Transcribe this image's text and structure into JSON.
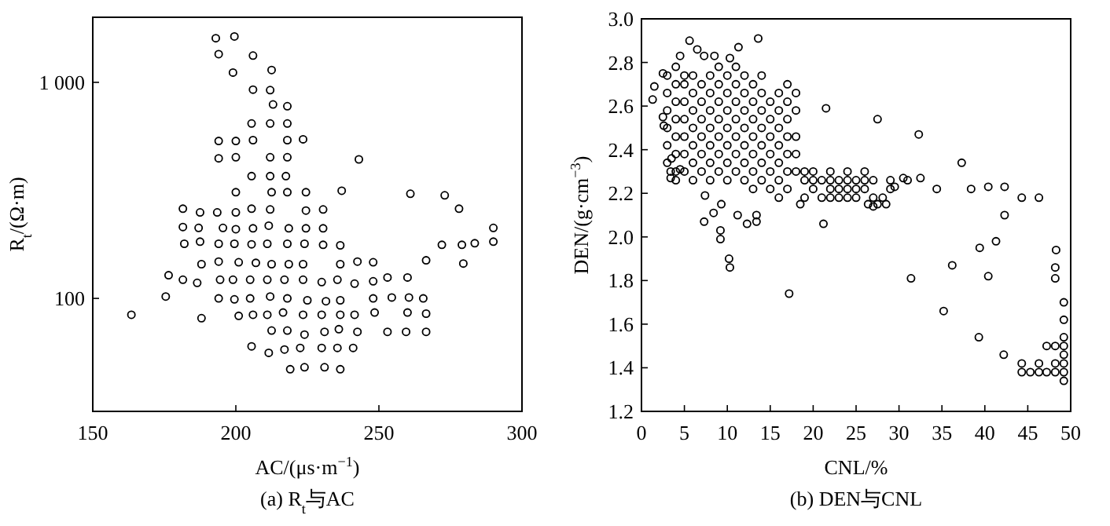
{
  "chart_data": [
    {
      "type": "scatter",
      "title": "(a) R$_{t}$与AC",
      "xlabel": "AC/(μs·m$^{−1}$)",
      "ylabel": "R$_{t}$/(Ω·m)",
      "log": "y",
      "xlim": [
        150,
        300
      ],
      "xticks": [
        150,
        200,
        250,
        300
      ],
      "ylim": [
        30,
        2000
      ],
      "yticks": [
        {
          "value": 100,
          "label": "100"
        },
        {
          "value": 1000,
          "label": "1 000"
        }
      ],
      "marker": "circle",
      "grid": false,
      "series": [
        {
          "color": "#000000",
          "x": [
            193,
            199.5,
            194,
            206,
            199,
            212.5,
            206,
            212,
            213,
            218,
            205.5,
            212,
            218,
            194,
            200,
            206,
            218,
            223.5,
            194,
            200,
            212,
            218,
            243,
            205.5,
            212,
            217.5,
            200,
            212.5,
            218,
            224.5,
            237,
            261,
            273,
            278,
            181.5,
            187.5,
            193.5,
            200,
            205.5,
            212,
            224.5,
            230.5,
            181.5,
            187,
            195.5,
            200,
            206,
            211.5,
            218.5,
            224.5,
            230.5,
            290,
            182,
            187.5,
            194,
            199.5,
            205.5,
            211,
            218,
            224,
            230.5,
            236.5,
            272,
            279,
            283.5,
            290,
            188,
            194,
            201,
            207,
            212.5,
            218.5,
            223.5,
            236.5,
            242.5,
            248,
            266.5,
            279.5,
            176.5,
            181.5,
            186.5,
            194.5,
            199,
            205,
            211,
            217,
            223.5,
            230,
            235.5,
            241.5,
            248,
            253,
            260,
            175.5,
            194,
            199.5,
            205,
            212,
            218,
            225,
            231.5,
            236.5,
            248,
            254.5,
            260.5,
            265.5,
            163.5,
            188,
            201,
            206,
            211,
            216.5,
            223.5,
            230,
            236.5,
            241.5,
            248.5,
            260,
            266.5,
            212.5,
            218,
            224,
            231,
            236,
            242.5,
            253,
            259.5,
            266.5,
            205.5,
            211.5,
            217,
            222.5,
            230,
            235.5,
            241,
            219,
            224,
            231,
            236.5
          ],
          "values": [
            1600,
            1630,
            1350,
            1330,
            1110,
            1140,
            925,
            920,
            790,
            775,
            645,
            645,
            645,
            535,
            535,
            540,
            540,
            545,
            445,
            450,
            450,
            450,
            440,
            368,
            368,
            368,
            310,
            310,
            310,
            310,
            315,
            305,
            300,
            260,
            260,
            250,
            250,
            250,
            260,
            258,
            255,
            258,
            214,
            212,
            212,
            209,
            211,
            217,
            211,
            211,
            211,
            212,
            179,
            183,
            179,
            179,
            178,
            179,
            179,
            179,
            177,
            176,
            177,
            177,
            180,
            183,
            144,
            148,
            147,
            146,
            144,
            144,
            144,
            144,
            148,
            147,
            150,
            145,
            128,
            122,
            118,
            122,
            122,
            122,
            122,
            122,
            122,
            119,
            122,
            117,
            120,
            125,
            125,
            102,
            100,
            99,
            100,
            102,
            100,
            98,
            97,
            98,
            100,
            101,
            101,
            100,
            84,
            81,
            83,
            84,
            84,
            86,
            84,
            84,
            84,
            84,
            86,
            86,
            85,
            71,
            71,
            68,
            70,
            72,
            70,
            70,
            70,
            70,
            60,
            56,
            58,
            59,
            59,
            59,
            59,
            47,
            48,
            48,
            47
          ]
        }
      ]
    },
    {
      "type": "scatter",
      "title": "(b) DEN与CNL",
      "xlabel": "CNL/%",
      "ylabel": "DEN/(g·cm$^{−3}$)",
      "xlim": [
        0,
        50
      ],
      "xticks": [
        0,
        5,
        10,
        15,
        20,
        25,
        30,
        35,
        40,
        45,
        50
      ],
      "ylim": [
        1.2,
        3.0
      ],
      "yticks": [
        {
          "value": 1.2,
          "label": "1.2"
        },
        {
          "value": 1.4,
          "label": "1.4"
        },
        {
          "value": 1.6,
          "label": "1.6"
        },
        {
          "value": 1.8,
          "label": "1.8"
        },
        {
          "value": 2.0,
          "label": "2.0"
        },
        {
          "value": 2.2,
          "label": "2.2"
        },
        {
          "value": 2.4,
          "label": "2.4"
        },
        {
          "value": 2.6,
          "label": "2.6"
        },
        {
          "value": 2.8,
          "label": "2.8"
        },
        {
          "value": 3.0,
          "label": "3.0"
        }
      ],
      "marker": "circle",
      "grid": false,
      "series": [
        {
          "color": "#000000",
          "x": [
            1.3,
            1.5,
            2.5,
            2.5,
            2.6,
            3.4,
            3.4,
            3.5,
            4.5,
            3,
            3,
            3,
            3,
            3,
            3,
            4,
            4,
            4,
            4,
            4,
            4,
            4,
            4,
            5,
            5,
            5,
            5,
            5,
            5,
            5,
            6,
            6,
            6,
            6,
            6,
            6,
            6,
            7,
            7,
            7,
            7,
            7,
            7,
            8,
            8,
            8,
            8,
            8,
            8,
            8,
            9,
            9,
            9,
            9,
            9,
            9,
            9,
            10,
            10,
            10,
            10,
            10,
            10,
            10,
            11,
            11,
            11,
            11,
            11,
            11,
            11,
            12,
            12,
            12,
            12,
            12,
            12,
            12,
            13,
            13,
            13,
            13,
            13,
            13,
            13,
            14,
            14,
            14,
            14,
            14,
            14,
            14,
            15,
            15,
            15,
            15,
            15,
            15,
            16,
            16,
            16,
            16,
            16,
            16,
            16,
            17,
            17,
            17,
            17,
            17,
            17,
            17,
            18,
            18,
            18,
            18,
            18,
            19,
            19,
            19,
            20,
            20,
            20,
            21,
            21,
            22,
            22,
            22,
            22,
            23,
            23,
            23,
            24,
            24,
            24,
            24,
            25,
            25,
            25,
            26,
            26,
            26,
            27,
            27,
            27,
            29,
            29,
            31,
            5.6,
            13.6,
            4.5,
            6.5,
            7.3,
            8.5,
            10.3,
            11.3,
            21.5,
            27.5,
            32.3,
            37.3,
            34.4,
            38.4,
            40.4,
            42.3,
            44.3,
            46.3,
            42.3,
            41.3,
            39.4,
            48.3,
            36.2,
            21.2,
            7.3,
            8.4,
            9.3,
            7.4,
            11.2,
            12.3,
            13.4,
            13.4,
            9.2,
            9.2,
            18.5,
            26.4,
            27.5,
            28.5,
            28.1,
            29.5,
            30.5,
            32.5,
            10.2,
            10.3,
            17.2,
            31.4,
            35.2,
            40.4,
            39.3,
            42.2,
            44.3,
            44.3,
            45.3,
            46.3,
            46.3,
            47.2,
            47.2,
            48.2,
            48.2,
            48.2,
            48.2,
            48.2,
            49.2,
            49.2,
            49.2,
            49.2,
            49.2,
            49.2,
            49.2,
            49.2
          ],
          "values": [
            2.63,
            2.69,
            2.75,
            2.55,
            2.51,
            2.3,
            2.27,
            2.36,
            2.31,
            2.34,
            2.42,
            2.5,
            2.58,
            2.66,
            2.74,
            2.26,
            2.3,
            2.38,
            2.46,
            2.54,
            2.62,
            2.7,
            2.78,
            2.3,
            2.38,
            2.46,
            2.54,
            2.62,
            2.7,
            2.74,
            2.26,
            2.34,
            2.42,
            2.5,
            2.58,
            2.66,
            2.74,
            2.3,
            2.38,
            2.46,
            2.54,
            2.62,
            2.7,
            2.26,
            2.34,
            2.42,
            2.5,
            2.58,
            2.66,
            2.74,
            2.3,
            2.38,
            2.46,
            2.54,
            2.62,
            2.7,
            2.78,
            2.26,
            2.34,
            2.42,
            2.5,
            2.58,
            2.66,
            2.74,
            2.3,
            2.38,
            2.46,
            2.54,
            2.62,
            2.7,
            2.78,
            2.26,
            2.34,
            2.42,
            2.5,
            2.58,
            2.66,
            2.74,
            2.22,
            2.3,
            2.38,
            2.46,
            2.54,
            2.62,
            2.7,
            2.26,
            2.34,
            2.42,
            2.5,
            2.58,
            2.66,
            2.74,
            2.22,
            2.3,
            2.38,
            2.46,
            2.54,
            2.62,
            2.18,
            2.26,
            2.34,
            2.42,
            2.5,
            2.58,
            2.66,
            2.22,
            2.3,
            2.38,
            2.46,
            2.54,
            2.62,
            2.7,
            2.3,
            2.38,
            2.46,
            2.58,
            2.66,
            2.18,
            2.26,
            2.3,
            2.22,
            2.26,
            2.3,
            2.18,
            2.26,
            2.18,
            2.22,
            2.26,
            2.3,
            2.18,
            2.22,
            2.26,
            2.18,
            2.22,
            2.26,
            2.3,
            2.18,
            2.22,
            2.26,
            2.22,
            2.26,
            2.3,
            2.14,
            2.18,
            2.26,
            2.22,
            2.26,
            2.26,
            2.9,
            2.91,
            2.83,
            2.86,
            2.83,
            2.83,
            2.82,
            2.87,
            2.59,
            2.54,
            2.47,
            2.34,
            2.22,
            2.22,
            2.23,
            2.23,
            2.18,
            2.18,
            2.1,
            1.98,
            1.95,
            1.94,
            1.87,
            2.06,
            2.07,
            2.11,
            2.15,
            2.19,
            2.1,
            2.06,
            2.1,
            2.07,
            2.03,
            1.99,
            2.15,
            2.15,
            2.15,
            2.15,
            2.18,
            2.23,
            2.27,
            2.27,
            1.9,
            1.86,
            1.74,
            1.81,
            1.66,
            1.82,
            1.54,
            1.46,
            1.42,
            1.38,
            1.38,
            1.42,
            1.38,
            1.5,
            1.38,
            1.5,
            1.42,
            1.38,
            1.86,
            1.81,
            1.7,
            1.62,
            1.54,
            1.5,
            1.46,
            1.42,
            1.38,
            1.34
          ]
        }
      ]
    }
  ]
}
